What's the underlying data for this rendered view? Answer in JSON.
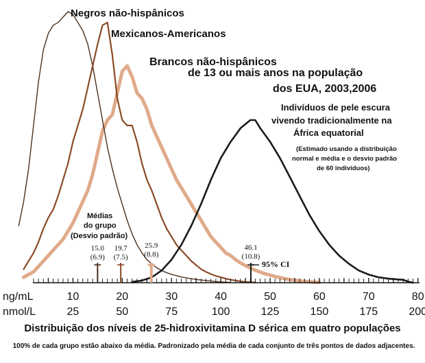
{
  "chart_data": {
    "type": "line",
    "title": "Distribuição dos níveis de 25-hidroxivitamina D sérica em quatro populações",
    "note": "100% de cada grupo estão abaixo da média. Padronizado pela média de cada conjunto de três pontos de dados adjacentes.",
    "xlim": [
      0,
      80
    ],
    "x_axis_rows": [
      {
        "label": "ng/mL",
        "ticks": [
          "10",
          "20",
          "30",
          "40",
          "50",
          "60",
          "70",
          "80"
        ]
      },
      {
        "label": "nmol/L",
        "ticks": [
          "25",
          "50",
          "75",
          "100",
          "125",
          "150",
          "175",
          "200"
        ]
      }
    ],
    "tick_values": [
      10,
      20,
      30,
      40,
      50,
      60,
      70,
      80
    ],
    "grid": false,
    "series": [
      {
        "name": "Negros não-hispânicos",
        "color": "#4a2e1c",
        "width": 1.4,
        "points": [
          [
            -1,
            21
          ],
          [
            0,
            30
          ],
          [
            1,
            42
          ],
          [
            2,
            58
          ],
          [
            3,
            74
          ],
          [
            4,
            86
          ],
          [
            5,
            92
          ],
          [
            6,
            95
          ],
          [
            7,
            96
          ],
          [
            8,
            98
          ],
          [
            9,
            100
          ],
          [
            10,
            99
          ],
          [
            11,
            96
          ],
          [
            12,
            93
          ],
          [
            13,
            88
          ],
          [
            14,
            80
          ],
          [
            15,
            70
          ],
          [
            16,
            60
          ],
          [
            17,
            50
          ],
          [
            18,
            42
          ],
          [
            19,
            35
          ],
          [
            20,
            29
          ],
          [
            21,
            23
          ],
          [
            22,
            18
          ],
          [
            23,
            14
          ],
          [
            24,
            11
          ],
          [
            25,
            8.5
          ],
          [
            26,
            7
          ],
          [
            27,
            5.5
          ],
          [
            28,
            4.5
          ],
          [
            29,
            3.7
          ],
          [
            30,
            3.1
          ],
          [
            31,
            2.6
          ],
          [
            32,
            2.1
          ],
          [
            33,
            1.8
          ],
          [
            34,
            1.5
          ],
          [
            35,
            1.2
          ],
          [
            36,
            1
          ],
          [
            37,
            0.8
          ],
          [
            38,
            0.6
          ],
          [
            39,
            0.4
          ],
          [
            40,
            0.3
          ],
          [
            41,
            0.2
          ],
          [
            42,
            0.1
          ]
        ]
      },
      {
        "name": "Mexicanos-Americanos",
        "color": "#8a4a26",
        "width": 2.2,
        "points": [
          [
            0,
            5
          ],
          [
            1,
            8
          ],
          [
            2,
            11
          ],
          [
            3,
            15
          ],
          [
            4,
            20
          ],
          [
            5,
            24
          ],
          [
            6,
            27
          ],
          [
            7,
            32
          ],
          [
            8,
            38
          ],
          [
            9,
            44
          ],
          [
            10,
            52
          ],
          [
            11,
            58
          ],
          [
            12,
            64
          ],
          [
            13,
            72
          ],
          [
            14,
            80
          ],
          [
            15,
            88
          ],
          [
            16,
            95
          ],
          [
            17,
            96
          ],
          [
            18,
            84
          ],
          [
            19,
            68
          ],
          [
            20,
            60
          ],
          [
            21,
            58
          ],
          [
            22,
            58
          ],
          [
            23,
            52
          ],
          [
            24,
            44
          ],
          [
            25,
            38
          ],
          [
            26,
            34
          ],
          [
            27,
            29
          ],
          [
            28,
            24
          ],
          [
            29,
            20
          ],
          [
            30,
            17
          ],
          [
            31,
            14
          ],
          [
            32,
            12
          ],
          [
            33,
            10
          ],
          [
            34,
            8
          ],
          [
            35,
            6.5
          ],
          [
            36,
            5
          ],
          [
            37,
            4
          ],
          [
            38,
            3.2
          ],
          [
            39,
            2.5
          ],
          [
            40,
            2
          ],
          [
            41,
            1.5
          ],
          [
            42,
            1.1
          ],
          [
            43,
            0.8
          ],
          [
            44,
            0.5
          ],
          [
            45,
            0.3
          ],
          [
            46,
            0.2
          ],
          [
            47,
            0.1
          ]
        ]
      },
      {
        "name": "Brancos não-hispânicos de 13 ou mais anos na população dos EUA, 2003,2006",
        "color": "#e0aa8a",
        "width": 5,
        "points": [
          [
            0,
            2
          ],
          [
            1,
            3
          ],
          [
            2,
            4
          ],
          [
            3,
            6
          ],
          [
            4,
            8
          ],
          [
            5,
            10
          ],
          [
            6,
            12
          ],
          [
            7,
            14
          ],
          [
            8,
            16
          ],
          [
            9,
            19
          ],
          [
            10,
            22
          ],
          [
            11,
            26
          ],
          [
            12,
            30
          ],
          [
            13,
            34
          ],
          [
            14,
            40
          ],
          [
            15,
            48
          ],
          [
            16,
            56
          ],
          [
            17,
            60
          ],
          [
            18,
            62
          ],
          [
            19,
            70
          ],
          [
            20,
            78
          ],
          [
            21,
            80
          ],
          [
            22,
            76
          ],
          [
            23,
            70
          ],
          [
            24,
            68
          ],
          [
            25,
            64
          ],
          [
            26,
            58
          ],
          [
            27,
            54
          ],
          [
            28,
            50
          ],
          [
            29,
            46
          ],
          [
            30,
            42
          ],
          [
            31,
            38
          ],
          [
            32,
            35
          ],
          [
            33,
            32
          ],
          [
            34,
            29
          ],
          [
            35,
            26
          ],
          [
            36,
            23
          ],
          [
            37,
            20
          ],
          [
            38,
            17
          ],
          [
            39,
            15
          ],
          [
            40,
            13
          ],
          [
            41,
            11
          ],
          [
            42,
            10
          ],
          [
            43,
            8.5
          ],
          [
            44,
            7.3
          ],
          [
            45,
            6.3
          ],
          [
            46,
            5.4
          ],
          [
            47,
            4.6
          ],
          [
            48,
            3.9
          ],
          [
            49,
            3.3
          ],
          [
            50,
            2.8
          ],
          [
            51,
            2.3
          ],
          [
            52,
            1.9
          ],
          [
            53,
            1.5
          ],
          [
            54,
            1.2
          ],
          [
            55,
            0.9
          ],
          [
            56,
            0.7
          ],
          [
            57,
            0.5
          ],
          [
            58,
            0.3
          ],
          [
            59,
            0.2
          ],
          [
            60,
            0.1
          ]
        ]
      },
      {
        "name": "Indivíduos de pele escura vivendo tradicionalmente na África equatorial",
        "color": "#1a1a1a",
        "width": 2.6,
        "points": [
          [
            22,
            0.3
          ],
          [
            24,
            0.8
          ],
          [
            26,
            2
          ],
          [
            28,
            4.5
          ],
          [
            30,
            8.5
          ],
          [
            32,
            14
          ],
          [
            34,
            21
          ],
          [
            36,
            29
          ],
          [
            38,
            38
          ],
          [
            40,
            46
          ],
          [
            42,
            52
          ],
          [
            44,
            57
          ],
          [
            46,
            60
          ],
          [
            47,
            60
          ],
          [
            48,
            57
          ],
          [
            50,
            52
          ],
          [
            52,
            46
          ],
          [
            54,
            39
          ],
          [
            56,
            32
          ],
          [
            58,
            25
          ],
          [
            60,
            19
          ],
          [
            62,
            14
          ],
          [
            64,
            10
          ],
          [
            66,
            7
          ],
          [
            68,
            4.5
          ],
          [
            70,
            3
          ],
          [
            72,
            2
          ],
          [
            74,
            1.5
          ],
          [
            76,
            1.2
          ],
          [
            77,
            1.1
          ],
          [
            78,
            0.4
          ],
          [
            79,
            0
          ]
        ]
      }
    ],
    "labels": {
      "negros": "Negros não-hispânicos",
      "mexicanos": "Mexicanos-Americanos",
      "brancos_1": "Brancos não-hispânicos",
      "brancos_2": "de 13 ou mais anos na população",
      "brancos_3": "dos EUA, 2003,2006",
      "africa_1": "Indivíduos de pele escura",
      "africa_2": "vivendo tradicionalmente na",
      "africa_3": "África equatorial",
      "africa_note_1": "(Estimado usando a distribuição",
      "africa_note_2": "normal e média e o desvio padrão",
      "africa_note_3": "de 60 indivíduos)"
    },
    "group_means": {
      "heading": [
        "Médias",
        "do grupo",
        "(Desvio padrão)"
      ],
      "means": [
        {
          "x": 15.0,
          "mean": "15.0",
          "sd": "(6.9)",
          "color": "#4a2e1c"
        },
        {
          "x": 19.7,
          "mean": "19.7",
          "sd": "(7.5)",
          "color": "#8a4a26"
        },
        {
          "x": 25.9,
          "mean": "25.9",
          "sd": "(8.8)",
          "color": "#e0aa8a"
        },
        {
          "x": 46.1,
          "mean": "46.1",
          "sd": "(10.8)",
          "color": "#1a1a1a"
        }
      ],
      "ci_label": "95% CI"
    }
  }
}
